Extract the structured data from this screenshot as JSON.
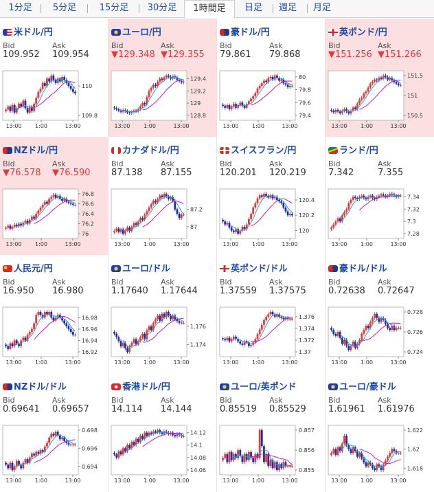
{
  "tabs": [
    {
      "label": "1分足",
      "active": false
    },
    {
      "label": "5分足",
      "active": false
    },
    {
      "label": "15分足",
      "active": false
    },
    {
      "label": "30分足",
      "active": false
    },
    {
      "label": "1時間足",
      "active": true
    },
    {
      "label": "日足",
      "active": false
    },
    {
      "label": "週足",
      "active": false
    },
    {
      "label": "月足",
      "active": false
    }
  ],
  "labels": {
    "bid": "Bid",
    "ask": "Ask"
  },
  "colors": {
    "up": "#e0393e",
    "down": "#1c2ea8",
    "ma": "#c01fb8",
    "ma2": "#1fa8c8",
    "neg_bg": "#fbdfe1",
    "link": "#1c4aa8"
  },
  "pairs": [
    {
      "name": "米ドル/円",
      "flag": "us",
      "bid": "109.952",
      "ask": "109.954",
      "bid_down": false,
      "ask_down": false,
      "y_ticks": [
        "110",
        "109.8"
      ],
      "x_ticks": [
        "13:00",
        "1:00",
        "13:00"
      ],
      "closes": [
        109.84,
        109.86,
        109.83,
        109.87,
        109.82,
        109.85,
        109.88,
        109.86,
        109.9,
        109.85,
        109.82,
        109.86,
        109.83,
        109.88,
        109.92,
        109.96,
        109.98,
        110.02,
        110.0,
        110.05,
        110.03,
        110.07,
        110.04,
        110.02,
        110.05,
        110.03,
        110.06,
        110.04,
        110.02,
        110.0,
        109.98,
        109.96,
        109.95
      ]
    },
    {
      "name": "ユーロ/円",
      "flag": "eu",
      "bid": "▼129.348",
      "ask": "▼129.355",
      "bid_down": true,
      "ask_down": true,
      "y_ticks": [
        "129.4",
        "129.2",
        "129",
        "128.8"
      ],
      "x_ticks": [
        "13:00",
        "1:00",
        "13:00"
      ],
      "closes": [
        128.92,
        128.9,
        128.88,
        128.86,
        128.89,
        128.87,
        128.85,
        128.84,
        128.86,
        128.88,
        128.87,
        128.9,
        128.95,
        129.0,
        128.98,
        129.1,
        129.2,
        129.25,
        129.3,
        129.28,
        129.35,
        129.4,
        129.38,
        129.42,
        129.45,
        129.43,
        129.4,
        129.44,
        129.42,
        129.38,
        129.36,
        129.34,
        129.35
      ]
    },
    {
      "name": "豪ドル/円",
      "flag": "au",
      "bid": "79.861",
      "ask": "79.868",
      "bid_down": false,
      "ask_down": false,
      "y_ticks": [
        "80",
        "79.8",
        "79.6",
        "79.4"
      ],
      "x_ticks": [
        "13:00",
        "1:00",
        "13:00"
      ],
      "closes": [
        79.55,
        79.52,
        79.56,
        79.5,
        79.54,
        79.58,
        79.52,
        79.56,
        79.6,
        79.55,
        79.52,
        79.58,
        79.62,
        79.66,
        79.7,
        79.75,
        79.82,
        79.86,
        79.9,
        79.94,
        79.92,
        79.98,
        80.0,
        79.96,
        80.02,
        79.98,
        79.94,
        79.96,
        79.9,
        79.88,
        79.84,
        79.86,
        79.86
      ]
    },
    {
      "name": "英ポンド/円",
      "flag": "gb",
      "bid": "▼151.256",
      "ask": "▼151.266",
      "bid_down": true,
      "ask_down": true,
      "y_ticks": [
        "151.5",
        "151",
        "150.5"
      ],
      "x_ticks": [
        "13:00",
        "1:00",
        "13:00"
      ],
      "closes": [
        150.62,
        150.58,
        150.64,
        150.6,
        150.56,
        150.62,
        150.66,
        150.6,
        150.55,
        150.62,
        150.7,
        150.66,
        150.8,
        150.9,
        150.95,
        151.05,
        151.1,
        151.2,
        151.3,
        151.35,
        151.4,
        151.38,
        151.45,
        151.42,
        151.5,
        151.46,
        151.4,
        151.44,
        151.38,
        151.34,
        151.3,
        151.26,
        151.26
      ]
    },
    {
      "name": "NZドル/円",
      "flag": "nz",
      "bid": "▼76.578",
      "ask": "▼76.590",
      "bid_down": true,
      "ask_down": true,
      "y_ticks": [
        "76.8",
        "76.6",
        "76.4",
        "76.2",
        "76"
      ],
      "x_ticks": [
        "13:00",
        "1:00",
        "13:00"
      ],
      "closes": [
        76.12,
        76.16,
        76.1,
        76.14,
        76.18,
        76.15,
        76.2,
        76.16,
        76.22,
        76.26,
        76.2,
        76.28,
        76.34,
        76.3,
        76.4,
        76.46,
        76.52,
        76.58,
        76.64,
        76.6,
        76.7,
        76.74,
        76.78,
        76.72,
        76.76,
        76.7,
        76.66,
        76.7,
        76.64,
        76.62,
        76.6,
        76.58,
        76.58
      ]
    },
    {
      "name": "カナダドル/円",
      "flag": "ca",
      "bid": "87.138",
      "ask": "87.155",
      "bid_down": false,
      "ask_down": false,
      "y_ticks": [
        "87.2",
        "87"
      ],
      "x_ticks": [
        "13:00",
        "1:00",
        "13:00"
      ],
      "closes": [
        86.95,
        86.98,
        86.94,
        86.97,
        86.92,
        86.96,
        86.99,
        86.95,
        87.0,
        87.04,
        87.02,
        87.06,
        87.1,
        87.08,
        87.14,
        87.18,
        87.22,
        87.26,
        87.3,
        87.28,
        87.32,
        87.36,
        87.34,
        87.38,
        87.35,
        87.32,
        87.34,
        87.3,
        87.2,
        87.15,
        87.1,
        87.14,
        87.14
      ]
    },
    {
      "name": "スイスフラン/円",
      "flag": "ch",
      "bid": "120.201",
      "ask": "120.219",
      "bid_down": false,
      "ask_down": false,
      "y_ticks": [
        "120.4",
        "120.2",
        "120"
      ],
      "x_ticks": [
        "13:00",
        "1:00",
        "13:00"
      ],
      "closes": [
        120.12,
        120.08,
        120.1,
        120.04,
        120.0,
        119.98,
        120.02,
        119.96,
        120.0,
        120.05,
        120.02,
        120.08,
        120.15,
        120.22,
        120.3,
        120.36,
        120.42,
        120.46,
        120.44,
        120.48,
        120.45,
        120.43,
        120.46,
        120.42,
        120.44,
        120.4,
        120.38,
        120.36,
        120.3,
        120.25,
        120.2,
        120.22,
        120.2
      ]
    },
    {
      "name": "ランド/円",
      "flag": "za",
      "bid": "7.342",
      "ask": "7.355",
      "bid_down": false,
      "ask_down": false,
      "y_ticks": [
        "7.34",
        "7.32",
        "7.3",
        "7.28"
      ],
      "x_ticks": [
        "13:00",
        "1:00",
        "13:00"
      ],
      "closes": [
        7.29,
        7.295,
        7.3,
        7.305,
        7.3,
        7.31,
        7.315,
        7.32,
        7.33,
        7.335,
        7.34,
        7.338,
        7.336,
        7.34,
        7.342,
        7.338,
        7.336,
        7.34,
        7.342,
        7.338,
        7.336,
        7.34,
        7.342,
        7.344,
        7.342,
        7.34,
        7.342,
        7.345,
        7.344,
        7.342,
        7.34,
        7.342,
        7.342
      ]
    },
    {
      "name": "人民元/円",
      "flag": "cn",
      "bid": "16.950",
      "ask": "16.980",
      "bid_down": false,
      "ask_down": false,
      "y_ticks": [
        "16.98",
        "16.96",
        "16.94",
        "16.92"
      ],
      "x_ticks": [
        "13:00",
        "1:00",
        "13:00"
      ],
      "closes": [
        16.93,
        16.925,
        16.935,
        16.93,
        16.94,
        16.935,
        16.93,
        16.94,
        16.945,
        16.94,
        16.95,
        16.955,
        16.96,
        16.97,
        16.985,
        16.99,
        16.985,
        16.98,
        16.99,
        16.985,
        16.99,
        16.98,
        16.975,
        16.98,
        16.985,
        16.98,
        16.975,
        16.97,
        16.965,
        16.96,
        16.955,
        16.95,
        16.95
      ]
    },
    {
      "name": "ユーロ/ドル",
      "flag": "eu",
      "bid": "1.17640",
      "ask": "1.17644",
      "bid_down": false,
      "ask_down": false,
      "y_ticks": [
        "1.176",
        "1.174"
      ],
      "x_ticks": [
        "13:00",
        "1:00",
        "13:00"
      ],
      "closes": [
        1.1752,
        1.1748,
        1.1744,
        1.1738,
        1.1742,
        1.1736,
        1.1732,
        1.1738,
        1.1742,
        1.1746,
        1.174,
        1.1744,
        1.1748,
        1.1752,
        1.1746,
        1.1756,
        1.176,
        1.1756,
        1.1764,
        1.1768,
        1.1772,
        1.1766,
        1.1774,
        1.177,
        1.1776,
        1.1772,
        1.1768,
        1.1772,
        1.1768,
        1.1766,
        1.1764,
        1.1764,
        1.1764
      ]
    },
    {
      "name": "英ポンド/ドル",
      "flag": "gb",
      "bid": "1.37559",
      "ask": "1.37575",
      "bid_down": false,
      "ask_down": false,
      "y_ticks": [
        "1.376",
        "1.374",
        "1.372",
        "1.37"
      ],
      "x_ticks": [
        "13:00",
        "1:00",
        "13:00"
      ],
      "closes": [
        1.3722,
        1.372,
        1.3724,
        1.3718,
        1.3722,
        1.3726,
        1.3722,
        1.3718,
        1.3714,
        1.3712,
        1.3718,
        1.3716,
        1.371,
        1.3712,
        1.3716,
        1.3722,
        1.373,
        1.3738,
        1.3746,
        1.3754,
        1.376,
        1.3764,
        1.3768,
        1.3764,
        1.376,
        1.3764,
        1.376,
        1.3758,
        1.3756,
        1.3758,
        1.3756,
        1.3756,
        1.3756
      ]
    },
    {
      "name": "豪ドル/ドル",
      "flag": "au",
      "bid": "0.72638",
      "ask": "0.72647",
      "bid_down": false,
      "ask_down": false,
      "y_ticks": [
        "0.728",
        "0.726",
        "0.724"
      ],
      "x_ticks": [
        "13:00",
        "1:00",
        "13:00"
      ],
      "closes": [
        0.7262,
        0.7258,
        0.7256,
        0.726,
        0.7254,
        0.7248,
        0.7252,
        0.7246,
        0.7242,
        0.7246,
        0.725,
        0.7244,
        0.7248,
        0.7252,
        0.7258,
        0.7262,
        0.7266,
        0.7264,
        0.727,
        0.7274,
        0.7278,
        0.7274,
        0.727,
        0.7274,
        0.7272,
        0.7268,
        0.7264,
        0.7262,
        0.7266,
        0.7262,
        0.7264,
        0.7264,
        0.7264
      ]
    },
    {
      "name": "NZドル/ドル",
      "flag": "nz",
      "bid": "0.69641",
      "ask": "0.69657",
      "bid_down": false,
      "ask_down": false,
      "y_ticks": [
        "0.698",
        "0.696",
        "0.694"
      ],
      "x_ticks": [
        "13:00",
        "1:00",
        "13:00"
      ],
      "closes": [
        0.6942,
        0.6938,
        0.6944,
        0.6936,
        0.694,
        0.6946,
        0.6942,
        0.6938,
        0.6944,
        0.6948,
        0.6944,
        0.695,
        0.6954,
        0.6952,
        0.6956,
        0.6954,
        0.6958,
        0.6956,
        0.6962,
        0.6966,
        0.6972,
        0.6976,
        0.6974,
        0.6978,
        0.6974,
        0.697,
        0.6972,
        0.6968,
        0.6966,
        0.6964,
        0.6964,
        0.6964,
        0.6964
      ]
    },
    {
      "name": "香港ドル/円",
      "flag": "hk",
      "bid": "14.114",
      "ask": "14.144",
      "bid_down": false,
      "ask_down": false,
      "y_ticks": [
        "14.12",
        "14.1",
        "14.08",
        "14.06"
      ],
      "x_ticks": [
        "13:00",
        "1:00",
        "13:00"
      ],
      "closes": [
        14.085,
        14.08,
        14.09,
        14.085,
        14.095,
        14.09,
        14.1,
        14.095,
        14.105,
        14.1,
        14.11,
        14.105,
        14.115,
        14.11,
        14.12,
        14.115,
        14.12,
        14.118,
        14.122,
        14.12,
        14.124,
        14.12,
        14.118,
        14.122,
        14.12,
        14.118,
        14.12,
        14.116,
        14.114,
        14.118,
        14.116,
        14.114,
        14.114
      ]
    },
    {
      "name": "ユーロ/英ポンド",
      "flag": "eu",
      "bid": "0.85519",
      "ask": "0.85529",
      "bid_down": false,
      "ask_down": false,
      "y_ticks": [
        "0.857",
        "0.856",
        "0.855"
      ],
      "x_ticks": [
        "13:00",
        "1:00",
        "13:00"
      ],
      "closes": [
        0.8556,
        0.8558,
        0.8554,
        0.8559,
        0.8555,
        0.8558,
        0.8556,
        0.856,
        0.8557,
        0.8554,
        0.8558,
        0.8555,
        0.8559,
        0.8556,
        0.8554,
        0.8558,
        0.8556,
        0.857,
        0.8562,
        0.8554,
        0.8558,
        0.8552,
        0.8555,
        0.8551,
        0.8554,
        0.855,
        0.8553,
        0.8551,
        0.8554,
        0.8552,
        0.8552,
        0.8552,
        0.8552
      ]
    },
    {
      "name": "ユーロ/豪ドル",
      "flag": "eu",
      "bid": "1.61961",
      "ask": "1.61976",
      "bid_down": false,
      "ask_down": false,
      "y_ticks": [
        "1.622",
        "1.62",
        "1.618"
      ],
      "x_ticks": [
        "13:00",
        "1:00",
        "13:00"
      ],
      "closes": [
        1.6196,
        1.62,
        1.6194,
        1.6202,
        1.6198,
        1.6206,
        1.6214,
        1.6204,
        1.62,
        1.6196,
        1.6202,
        1.6198,
        1.6192,
        1.6196,
        1.619,
        1.6186,
        1.6182,
        1.6186,
        1.6184,
        1.618,
        1.6178,
        1.6184,
        1.6182,
        1.6178,
        1.6184,
        1.6188,
        1.6192,
        1.6196,
        1.62,
        1.6198,
        1.6196,
        1.6196,
        1.6196
      ]
    }
  ]
}
